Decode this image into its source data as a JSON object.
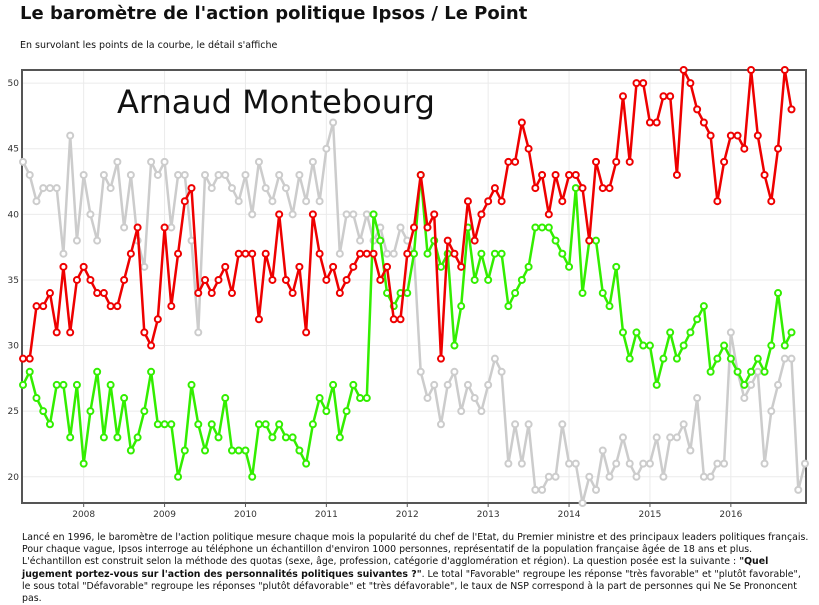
{
  "page": {
    "title": "Le baromètre de l'action politique Ipsos / Le Point",
    "subtitle": "En survolant les points de la courbe, le détail s'affiche",
    "description_1": "Lancé en 1996, le baromètre de l'action politique mesure chaque mois la popularité du chef de l'Etat, du Premier ministre et des principaux leaders politiques français. Pour chaque vague, Ipsos interroge au téléphone un échantillon d'environ 1000 personnes, représentatif de la population française âgée de 18 ans et plus. L'échantillon est construit selon la méthode des quotas (sexe, âge, profession, catégorie d'agglomération et région). La question posée est la suivante : ",
    "description_question": "\"Quel jugement portez-vous sur l'action des personnalités politiques suivantes ?\"",
    "description_2": ". Le total \"Favorable\" regroupe les réponse \"très favorable\" et \"plutôt favorable\", le sous total \"Défavorable\" regroupe les réponses \"plutôt défavorable\" et \"très défavorable\", le taux de NSP correspond à la part de personnes qui Ne Se Prononcent pas."
  },
  "chart_data": {
    "type": "line",
    "annotation": "Arnaud Montebourg",
    "x_start": "2007-04",
    "x_step": "1 month",
    "xlim": [
      "2007-04",
      "2016-12"
    ],
    "x_tick_labels": [
      "2008",
      "2009",
      "2010",
      "2011",
      "2012",
      "2013",
      "2014",
      "2015",
      "2016"
    ],
    "ylim": [
      18,
      51
    ],
    "y_ticks": [
      20,
      25,
      30,
      35,
      40,
      45,
      50
    ],
    "grid": true,
    "legend": "none",
    "colors": {
      "red_series": "#ee0000",
      "green_series": "#33ee00",
      "gray_series": "#cccccc"
    },
    "series": [
      {
        "color": "#cccccc",
        "values": [
          44,
          43,
          41,
          42,
          42,
          42,
          37,
          46,
          38,
          43,
          40,
          38,
          43,
          42,
          44,
          39,
          43,
          38,
          36,
          44,
          43,
          44,
          39,
          43,
          43,
          38,
          31,
          43,
          42,
          43,
          43,
          42,
          41,
          43,
          40,
          44,
          42,
          41,
          43,
          42,
          40,
          43,
          41,
          44,
          41,
          45,
          47,
          37,
          40,
          40,
          38,
          40,
          38,
          39,
          37,
          37,
          39,
          38,
          37,
          28,
          26,
          27,
          24,
          27,
          28,
          25,
          27,
          26,
          25,
          27,
          29,
          28,
          21,
          24,
          21,
          24,
          19,
          19,
          20,
          20,
          24,
          21,
          21,
          18,
          20,
          19,
          22,
          20,
          21,
          23,
          21,
          20,
          21,
          21,
          23,
          20,
          23,
          23,
          24,
          22,
          26,
          20,
          20,
          21,
          21,
          31,
          28,
          26,
          27,
          28,
          21,
          25,
          27,
          29,
          29,
          19,
          21
        ]
      },
      {
        "color": "#33ee00",
        "values": [
          27,
          28,
          26,
          25,
          24,
          27,
          27,
          23,
          27,
          21,
          25,
          28,
          23,
          27,
          23,
          26,
          22,
          23,
          25,
          28,
          24,
          24,
          24,
          20,
          22,
          27,
          24,
          22,
          24,
          23,
          26,
          22,
          22,
          22,
          20,
          24,
          24,
          23,
          24,
          23,
          23,
          22,
          21,
          24,
          26,
          25,
          27,
          23,
          25,
          27,
          26,
          26,
          40,
          38,
          34,
          33,
          34,
          34,
          37,
          43,
          37,
          38,
          36,
          37,
          30,
          33,
          39,
          35,
          37,
          35,
          37,
          37,
          33,
          34,
          35,
          36,
          39,
          39,
          39,
          38,
          37,
          36,
          42,
          34,
          38,
          38,
          34,
          33,
          36,
          31,
          29,
          31,
          30,
          30,
          27,
          29,
          31,
          29,
          30,
          31,
          32,
          33,
          28,
          29,
          30,
          29,
          28,
          27,
          28,
          29,
          28,
          30,
          34,
          30,
          31
        ]
      },
      {
        "color": "#ee0000",
        "values": [
          29,
          29,
          33,
          33,
          34,
          31,
          36,
          31,
          35,
          36,
          35,
          34,
          34,
          33,
          33,
          35,
          37,
          39,
          31,
          30,
          32,
          39,
          33,
          37,
          41,
          42,
          34,
          35,
          34,
          35,
          36,
          34,
          37,
          37,
          37,
          32,
          37,
          35,
          40,
          35,
          34,
          36,
          31,
          40,
          37,
          35,
          36,
          34,
          35,
          36,
          37,
          37,
          37,
          35,
          36,
          32,
          32,
          37,
          39,
          43,
          39,
          40,
          29,
          38,
          37,
          36,
          41,
          38,
          40,
          41,
          42,
          41,
          44,
          44,
          47,
          45,
          42,
          43,
          40,
          43,
          41,
          43,
          43,
          42,
          38,
          44,
          42,
          42,
          44,
          49,
          44,
          50,
          50,
          47,
          47,
          49,
          49,
          43,
          51,
          50,
          48,
          47,
          46,
          41,
          44,
          46,
          46,
          45,
          51,
          46,
          43,
          41,
          45,
          51,
          48
        ]
      }
    ]
  }
}
